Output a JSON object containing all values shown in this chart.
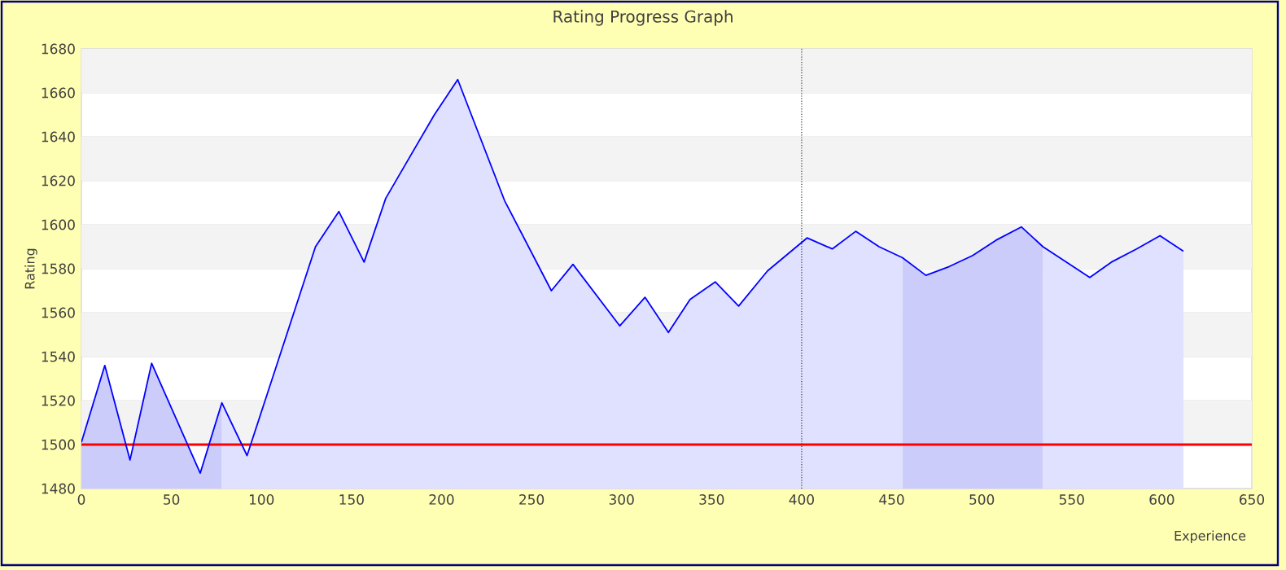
{
  "chart_data": {
    "type": "area",
    "title": "Rating Progress Graph",
    "xlabel": "Experience",
    "ylabel": "Rating",
    "xlim": [
      0,
      650
    ],
    "xticks": [
      0,
      50,
      100,
      150,
      200,
      250,
      300,
      350,
      400,
      450,
      500,
      550,
      600,
      650
    ],
    "ylim": [
      1480,
      1680
    ],
    "yticks": [
      1480,
      1500,
      1520,
      1540,
      1560,
      1580,
      1600,
      1620,
      1640,
      1660,
      1680
    ],
    "grid": "y",
    "marker": "none",
    "line_style": "solid",
    "x": [
      0,
      13,
      27,
      39,
      66,
      78,
      92,
      130,
      143,
      157,
      169,
      196,
      209,
      235,
      261,
      273,
      299,
      313,
      326,
      338,
      352,
      365,
      381,
      403,
      417,
      430,
      443,
      456,
      469,
      482,
      495,
      508,
      522,
      534,
      560,
      572,
      586,
      599,
      612
    ],
    "series": [
      {
        "color": "#0000ff",
        "values": [
          1501,
          1536,
          1493,
          1537,
          1487,
          1519,
          1495,
          1590,
          1606,
          1583,
          1612,
          1650,
          1666,
          1611,
          1570,
          1582,
          1554,
          1567,
          1551,
          1566,
          1574,
          1563,
          1579,
          1594,
          1589,
          1597,
          1590,
          1585,
          1577,
          1581,
          1586,
          1593,
          1599,
          1590,
          1576,
          1583,
          1589,
          1595,
          1588
        ]
      }
    ],
    "ref_lines": [
      {
        "axis": "y",
        "value": 1500,
        "color": "#ff0000",
        "line_style": "solid"
      },
      {
        "axis": "x",
        "value": 400,
        "color": "#1a401a",
        "line_style": "dotted"
      }
    ],
    "bands": [
      {
        "axis": "x",
        "from": 0,
        "to": 78,
        "color": "#ccccfa"
      },
      {
        "axis": "x",
        "from": 456,
        "to": 534,
        "color": "#ccccfa"
      }
    ]
  }
}
